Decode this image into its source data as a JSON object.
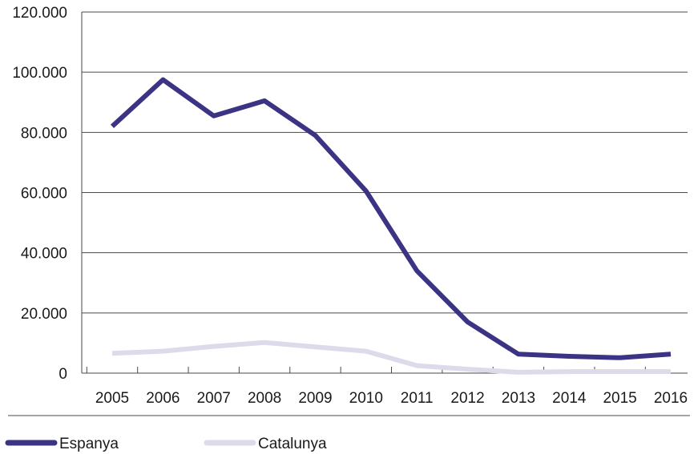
{
  "chart_data": {
    "type": "line",
    "title": "",
    "xlabel": "",
    "ylabel": "",
    "categories": [
      "2005",
      "2006",
      "2007",
      "2008",
      "2009",
      "2010",
      "2011",
      "2012",
      "2013",
      "2014",
      "2015",
      "2016"
    ],
    "y_ticks": [
      "0",
      "20.000",
      "40.000",
      "60.000",
      "80.000",
      "100.000",
      "120.000"
    ],
    "ylim": [
      0,
      120000
    ],
    "grid": "horizontal",
    "legend_position": "bottom-left",
    "series": [
      {
        "name": "Espanya",
        "color": "#3b3484",
        "values": [
          82000,
          97500,
          85500,
          90500,
          79000,
          60500,
          34000,
          17000,
          6300,
          5600,
          5100,
          6300
        ]
      },
      {
        "name": "Catalunya",
        "color": "#dddbea",
        "values": [
          6600,
          7300,
          8900,
          10200,
          8700,
          7300,
          2500,
          1300,
          300,
          500,
          500,
          500
        ]
      }
    ]
  }
}
